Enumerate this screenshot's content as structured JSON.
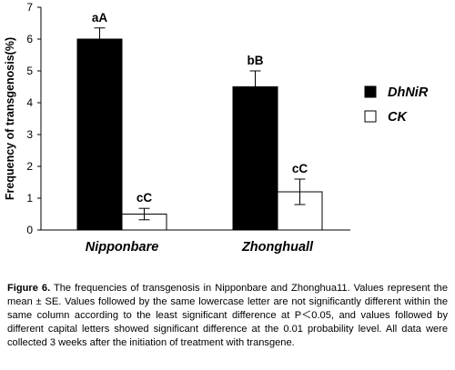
{
  "chart_data": {
    "type": "bar",
    "categories": [
      "Nipponbare",
      "Zhonghuall"
    ],
    "series": [
      {
        "name": "DhNiR",
        "values": [
          6.0,
          4.5
        ],
        "errors": [
          0.35,
          0.5
        ],
        "labels": [
          "aA",
          "bB"
        ],
        "color": "#000000"
      },
      {
        "name": "CK",
        "values": [
          0.5,
          1.2
        ],
        "errors": [
          0.18,
          0.4
        ],
        "labels": [
          "cC",
          "cC"
        ],
        "color": "#ffffff"
      }
    ],
    "ylabel": "Frequency of transgenosis(%)",
    "xlabel": "",
    "ylim": [
      0,
      7
    ],
    "yticks": [
      "0",
      "1",
      "2",
      "3",
      "4",
      "5",
      "6",
      "7"
    ],
    "grid": false,
    "legend_position": "right"
  },
  "caption": {
    "label": "Figure 6.",
    "text": "The frequencies of transgenosis in Nipponbare and Zhonghua11. Values represent the mean ± SE. Values followed by the same lowercase letter are not significantly different within the same column according to the least significant difference at P＜0.05, and values followed by different capital letters showed significant difference at the 0.01 probability level. All data were collected 3 weeks after the initiation of treatment with transgene."
  }
}
